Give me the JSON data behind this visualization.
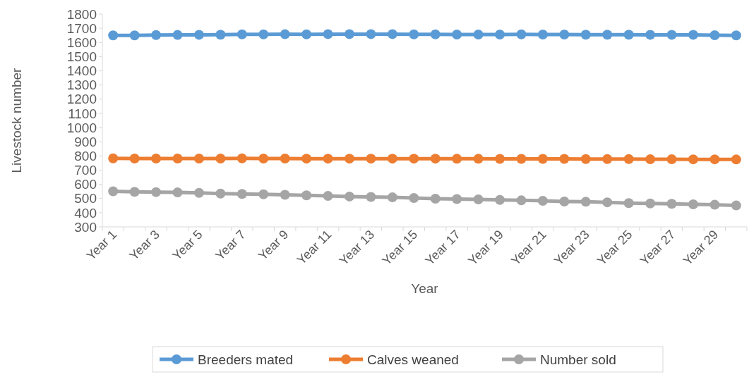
{
  "chart_data": {
    "type": "line",
    "xlabel": "Year",
    "ylabel": "Livestock number",
    "categories": [
      "Year 1",
      null,
      "Year 3",
      null,
      "Year 5",
      null,
      "Year 7",
      null,
      "Year 9",
      null,
      "Year 11",
      null,
      "Year 13",
      null,
      "Year 15",
      null,
      "Year 17",
      null,
      "Year 19",
      null,
      "Year 21",
      null,
      "Year 23",
      null,
      "Year 25",
      null,
      "Year 27",
      null,
      "Year 29",
      null
    ],
    "series": [
      {
        "name": "Breeders mated",
        "color": "#5b9bd5",
        "values": [
          1650,
          1650,
          1652,
          1653,
          1654,
          1655,
          1657,
          1657,
          1658,
          1657,
          1659,
          1659,
          1659,
          1659,
          1657,
          1657,
          1656,
          1656,
          1656,
          1657,
          1656,
          1656,
          1655,
          1655,
          1655,
          1654,
          1654,
          1654,
          1651,
          1650
        ]
      },
      {
        "name": "Calves weaned",
        "color": "#ed7d31",
        "values": [
          783,
          782,
          782,
          782,
          782,
          782,
          783,
          782,
          782,
          781,
          781,
          781,
          781,
          781,
          781,
          781,
          780,
          780,
          779,
          779,
          779,
          779,
          778,
          778,
          778,
          777,
          777,
          776,
          776,
          775
        ]
      },
      {
        "name": "Number sold",
        "color": "#a5a5a5",
        "values": [
          551,
          547,
          545,
          543,
          540,
          535,
          532,
          530,
          526,
          522,
          518,
          514,
          511,
          508,
          504,
          499,
          496,
          494,
          490,
          487,
          484,
          479,
          477,
          473,
          468,
          465,
          463,
          459,
          456,
          451
        ]
      }
    ],
    "ylim": [
      300,
      1800
    ],
    "yticks": [
      300,
      400,
      500,
      600,
      700,
      800,
      900,
      1000,
      1100,
      1200,
      1300,
      1400,
      1500,
      1600,
      1700,
      1800
    ],
    "grid": false,
    "legend": "bottom",
    "marker": "circle",
    "line_style": "solid"
  }
}
